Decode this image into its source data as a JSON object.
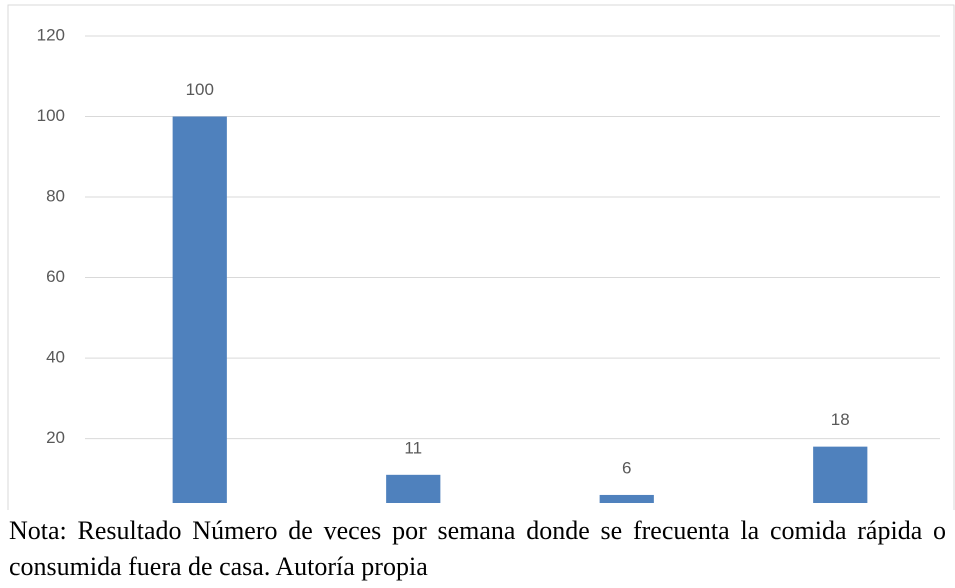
{
  "chart_data": {
    "type": "bar",
    "categories": [
      null,
      null,
      null,
      null
    ],
    "values": [
      100,
      11,
      6,
      18
    ],
    "color": "#4f81bd",
    "ylim": [
      4,
      120
    ],
    "yticks": [
      20,
      40,
      60,
      80,
      100,
      120
    ],
    "grid": true,
    "note": "Nota: Resultado Número de veces por semana donde se frecuenta la comida rápida o consumida fuera de casa. Autoría propia"
  }
}
